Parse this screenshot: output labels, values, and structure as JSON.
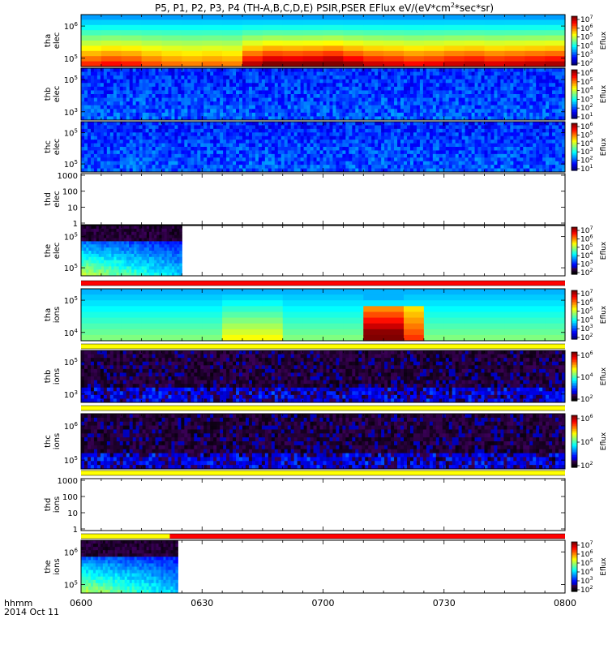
{
  "title": "P5, P1, P2, P3, P4 (TH-A,B,C,D,E) PSIR,PSER EFlux eV/(eV*cm",
  "title_sup": "2",
  "title_tail": "*sec*sr)",
  "time_label": "hhmm",
  "date_label": "2014 Oct 11",
  "colors": {
    "mode_red": "#ff0000",
    "mode_yellow": "#ffff00",
    "mode_black": "#000000",
    "bg": "#ffffff"
  },
  "chart_data": {
    "type": "heatmap",
    "x_range": [
      "06:00",
      "08:00"
    ],
    "x_ticks": [
      "0600",
      "0630",
      "0700",
      "0730",
      "0800"
    ],
    "panels": [
      {
        "id": "tha-elec",
        "label": [
          "tha",
          "elec"
        ],
        "kind": "spec",
        "pattern": "smooth-high",
        "yticks": [
          "10^6",
          "10^5"
        ],
        "cbar": {
          "ticks": [
            "10^7",
            "10^6",
            "10^5",
            "10^4",
            "10^3",
            "10^2"
          ],
          "label": "Eflux"
        }
      },
      {
        "id": "thb-elec",
        "label": [
          "thb",
          "elec"
        ],
        "kind": "spec",
        "pattern": "noise-low",
        "yticks": [
          "10^5",
          "10^3"
        ],
        "cbar": {
          "ticks": [
            "10^6",
            "10^5",
            "10^4",
            "10^3",
            "10^2",
            "10^1"
          ],
          "label": "Eflux"
        }
      },
      {
        "id": "thc-elec",
        "label": [
          "thc",
          "elec"
        ],
        "kind": "spec",
        "pattern": "noise-low",
        "yticks": [
          "10^5",
          "10^5"
        ],
        "cbar": {
          "ticks": [
            "10^6",
            "10^5",
            "10^4",
            "10^3",
            "10^2",
            "10^1"
          ],
          "label": "Eflux"
        }
      },
      {
        "id": "thd-elec",
        "label": [
          "thd",
          "elec"
        ],
        "kind": "empty",
        "yticks": [
          "1000",
          "100",
          "10",
          "1"
        ]
      },
      {
        "id": "the-elec",
        "label": [
          "the",
          "elec"
        ],
        "kind": "spec",
        "pattern": "partial",
        "x_end": "06:25",
        "yticks": [
          "10^5",
          "10^5"
        ],
        "cbar": {
          "ticks": [
            "10^7",
            "10^6",
            "10^5",
            "10^4",
            "10^3",
            "10^2"
          ],
          "label": "Eflux"
        }
      },
      {
        "id": "tha-ions",
        "label": [
          "tha",
          "ions"
        ],
        "kind": "spec",
        "pattern": "ions-blocks",
        "yticks": [
          "10^5",
          "10^4"
        ],
        "cbar": {
          "ticks": [
            "10^7",
            "10^6",
            "10^5",
            "10^4",
            "10^3",
            "10^2"
          ],
          "label": "Eflux"
        }
      },
      {
        "id": "thb-ions",
        "label": [
          "thb",
          "ions"
        ],
        "kind": "spec",
        "pattern": "noise-dark",
        "yticks": [
          "10^5",
          "10^3"
        ],
        "cbar": {
          "ticks": [
            "10^6",
            "10^4",
            "10^2"
          ],
          "label": "Eflux"
        }
      },
      {
        "id": "thc-ions",
        "label": [
          "thc",
          "ions"
        ],
        "kind": "spec",
        "pattern": "noise-dark",
        "yticks": [
          "10^6",
          "10^5"
        ],
        "cbar": {
          "ticks": [
            "10^6",
            "10^4",
            "10^2"
          ],
          "label": "Eflux"
        }
      },
      {
        "id": "thd-ions",
        "label": [
          "thd",
          "ions"
        ],
        "kind": "empty",
        "yticks": [
          "1000",
          "100",
          "10",
          "1"
        ]
      },
      {
        "id": "the-ions",
        "label": [
          "the",
          "ions"
        ],
        "kind": "spec",
        "pattern": "partial",
        "x_end": "06:24",
        "yticks": [
          "10^6",
          "10^5"
        ],
        "cbar": {
          "ticks": [
            "10^7",
            "10^6",
            "10^5",
            "10^4",
            "10^3",
            "10^2"
          ],
          "label": "Eflux"
        }
      }
    ],
    "mode_bars": [
      {
        "after": "the-elec",
        "segments": [
          {
            "color": "red",
            "from": "06:00",
            "to": "08:00"
          }
        ]
      },
      {
        "after": "tha-ions",
        "segments": [
          {
            "color": "yellow",
            "from": "06:00",
            "to": "08:00"
          }
        ]
      },
      {
        "after": "thb-ions",
        "segments": [
          {
            "color": "yellow",
            "from": "06:00",
            "to": "08:00"
          }
        ]
      },
      {
        "after": "thc-ions",
        "segments": [
          {
            "color": "yellow",
            "from": "06:00",
            "to": "08:00"
          }
        ]
      },
      {
        "after": "thd-ions",
        "segments": [
          {
            "color": "yellow",
            "from": "06:00",
            "to": "06:22"
          },
          {
            "color": "red",
            "from": "06:22",
            "to": "08:00"
          }
        ]
      }
    ]
  }
}
